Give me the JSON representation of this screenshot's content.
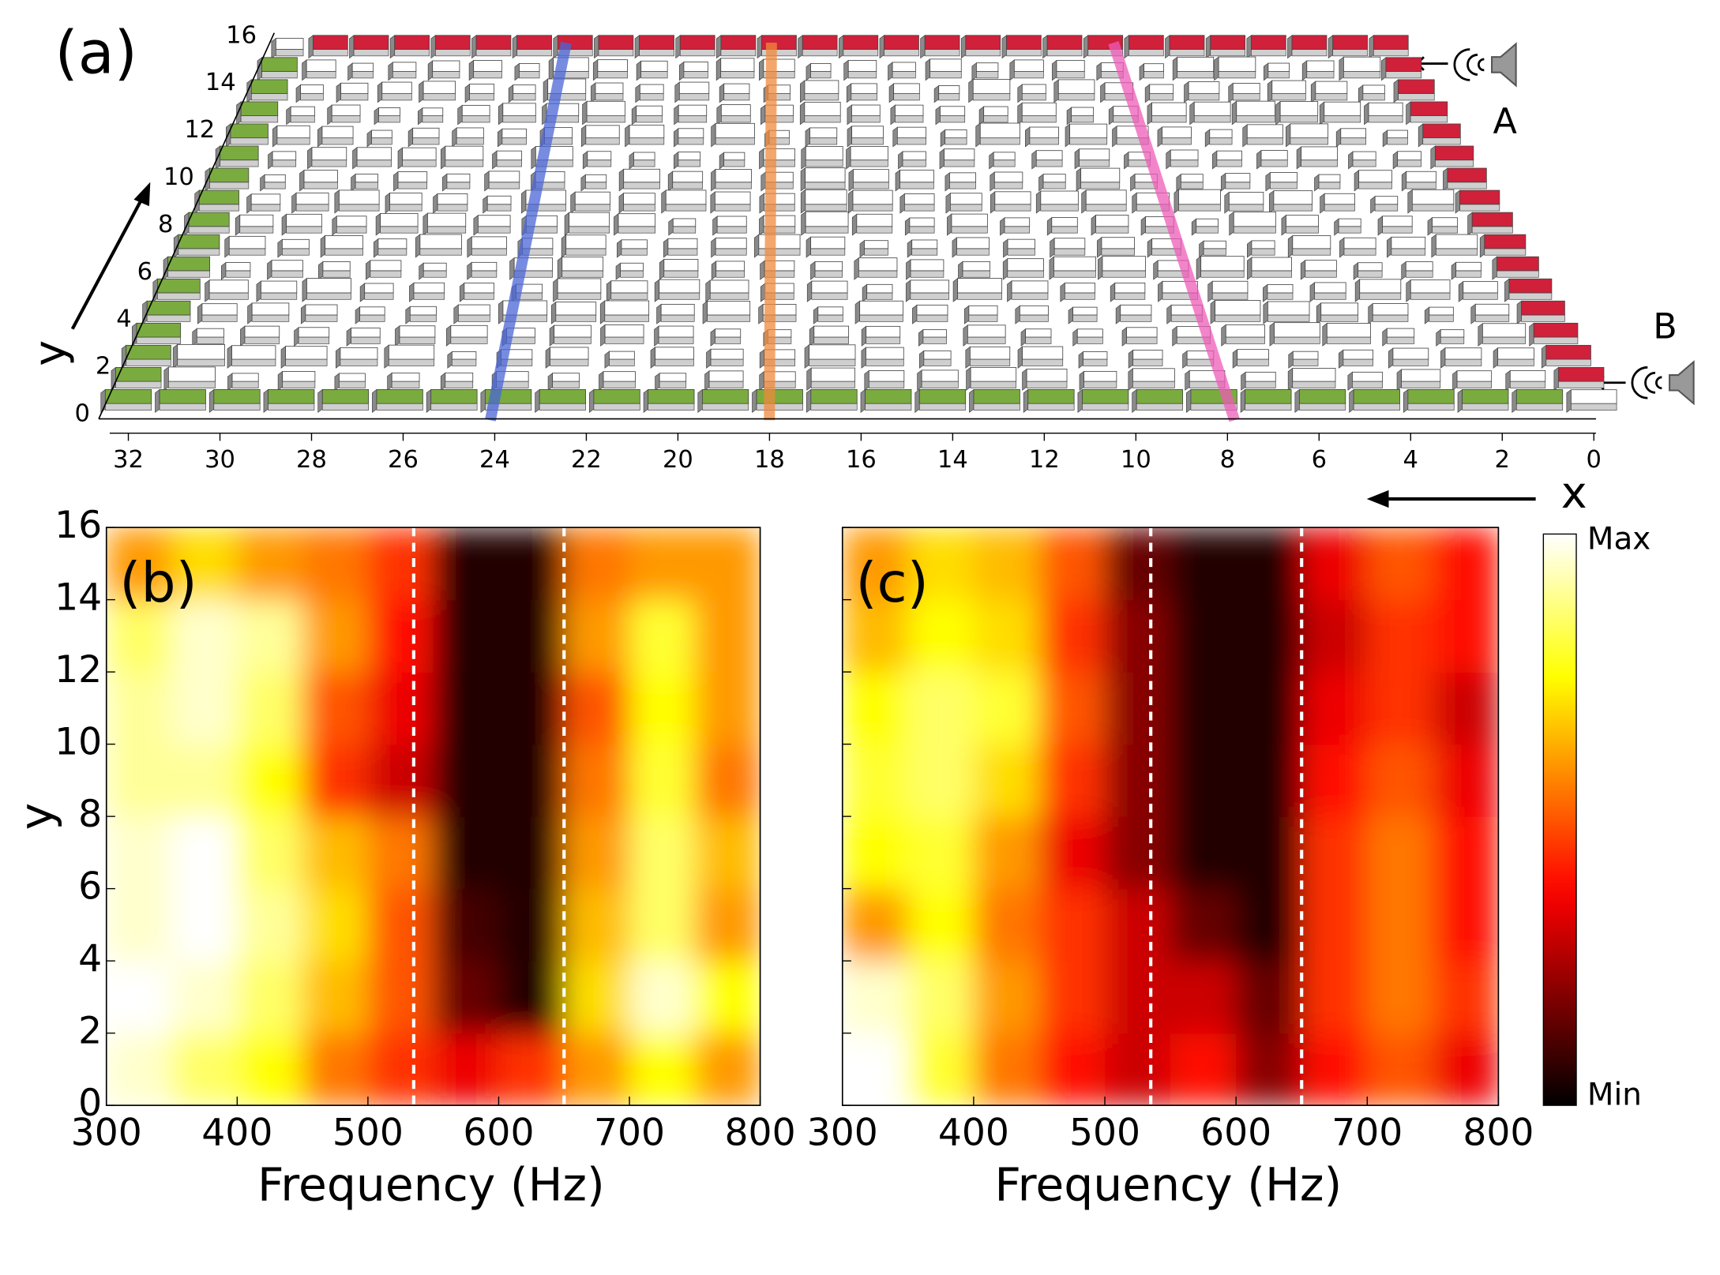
{
  "chart_data": [
    {
      "type": "lattice",
      "panel_label": "(a)",
      "xlabel": "x",
      "ylabel": "y",
      "xlim": [
        32,
        0
      ],
      "xticks": [
        32,
        30,
        28,
        26,
        24,
        22,
        20,
        18,
        16,
        14,
        12,
        10,
        8,
        6,
        4,
        2,
        0
      ],
      "ylim": [
        0,
        16
      ],
      "yticks": [
        0,
        2,
        4,
        6,
        8,
        10,
        12,
        14,
        16
      ],
      "annotations": [
        "A",
        "B"
      ],
      "highlights": [
        {
          "x": 24,
          "color": "#4a66d6"
        },
        {
          "x": 18,
          "color": "#f08a3c"
        },
        {
          "x": 8,
          "color": "#ee5cb8"
        }
      ],
      "colors": {
        "input": "#7aab3f",
        "output": "#d0203a",
        "cell": "#ffffff"
      }
    },
    {
      "type": "heatmap",
      "panel_label": "(b)",
      "xlabel": "Frequency (Hz)",
      "ylabel": "y",
      "x_bins": [
        300,
        350,
        400,
        450,
        500,
        550,
        600,
        650,
        700,
        750,
        800
      ],
      "y_bins": [
        0,
        2,
        4,
        6,
        8,
        10,
        12,
        14,
        16
      ],
      "values": [
        [
          0.95,
          0.85,
          0.75,
          0.55,
          0.45,
          0.35,
          0.45,
          0.6,
          0.75,
          0.6
        ],
        [
          1.0,
          0.95,
          0.85,
          0.65,
          0.5,
          0.15,
          0.05,
          0.7,
          0.95,
          0.75
        ],
        [
          0.95,
          1.0,
          0.9,
          0.7,
          0.5,
          0.1,
          0.05,
          0.65,
          0.85,
          0.6
        ],
        [
          0.95,
          1.0,
          0.85,
          0.65,
          0.55,
          0.05,
          0.05,
          0.6,
          0.85,
          0.65
        ],
        [
          0.9,
          0.9,
          0.75,
          0.45,
          0.3,
          0.05,
          0.05,
          0.55,
          0.8,
          0.55
        ],
        [
          0.9,
          0.95,
          0.85,
          0.5,
          0.35,
          0.05,
          0.05,
          0.5,
          0.75,
          0.6
        ],
        [
          0.85,
          0.95,
          0.9,
          0.6,
          0.4,
          0.05,
          0.05,
          0.6,
          0.8,
          0.6
        ],
        [
          0.6,
          0.7,
          0.6,
          0.55,
          0.45,
          0.05,
          0.05,
          0.55,
          0.6,
          0.6
        ]
      ],
      "xlim": [
        300,
        800
      ],
      "xticks": [
        300,
        400,
        500,
        600,
        700,
        800
      ],
      "ylim": [
        0,
        16
      ],
      "yticks": [
        0,
        2,
        4,
        6,
        8,
        10,
        12,
        14,
        16
      ],
      "ytick_labels": true,
      "dashed_lines": [
        535,
        650
      ],
      "colormap": "hot"
    },
    {
      "type": "heatmap",
      "panel_label": "(c)",
      "xlabel": "Frequency (Hz)",
      "x_bins": [
        300,
        350,
        400,
        450,
        500,
        550,
        600,
        650,
        700,
        750,
        800
      ],
      "y_bins": [
        0,
        2,
        4,
        6,
        8,
        10,
        12,
        14,
        16
      ],
      "values": [
        [
          1.0,
          0.8,
          0.55,
          0.4,
          0.3,
          0.4,
          0.2,
          0.4,
          0.5,
          0.35
        ],
        [
          0.95,
          0.85,
          0.6,
          0.45,
          0.3,
          0.3,
          0.15,
          0.45,
          0.55,
          0.45
        ],
        [
          0.6,
          0.75,
          0.55,
          0.45,
          0.3,
          0.15,
          0.05,
          0.45,
          0.55,
          0.4
        ],
        [
          0.75,
          0.8,
          0.6,
          0.35,
          0.2,
          0.05,
          0.05,
          0.45,
          0.55,
          0.4
        ],
        [
          0.8,
          0.85,
          0.7,
          0.45,
          0.2,
          0.05,
          0.05,
          0.4,
          0.5,
          0.35
        ],
        [
          0.75,
          0.85,
          0.8,
          0.5,
          0.2,
          0.05,
          0.05,
          0.35,
          0.45,
          0.3
        ],
        [
          0.65,
          0.75,
          0.7,
          0.45,
          0.2,
          0.05,
          0.05,
          0.3,
          0.45,
          0.4
        ],
        [
          0.6,
          0.7,
          0.65,
          0.5,
          0.15,
          0.05,
          0.05,
          0.35,
          0.5,
          0.4
        ]
      ],
      "xlim": [
        300,
        800
      ],
      "xticks": [
        300,
        400,
        500,
        600,
        700,
        800
      ],
      "ylim": [
        0,
        16
      ],
      "yticks": [
        0,
        2,
        4,
        6,
        8,
        10,
        12,
        14,
        16
      ],
      "ytick_labels": false,
      "dashed_lines": [
        535,
        650
      ],
      "colormap": "hot"
    },
    {
      "type": "colorbar",
      "colormap": "hot",
      "ylim": [
        0,
        1
      ],
      "ticks": [
        {
          "value": 0,
          "label": "Min"
        },
        {
          "value": 1,
          "label": "Max"
        }
      ]
    }
  ]
}
